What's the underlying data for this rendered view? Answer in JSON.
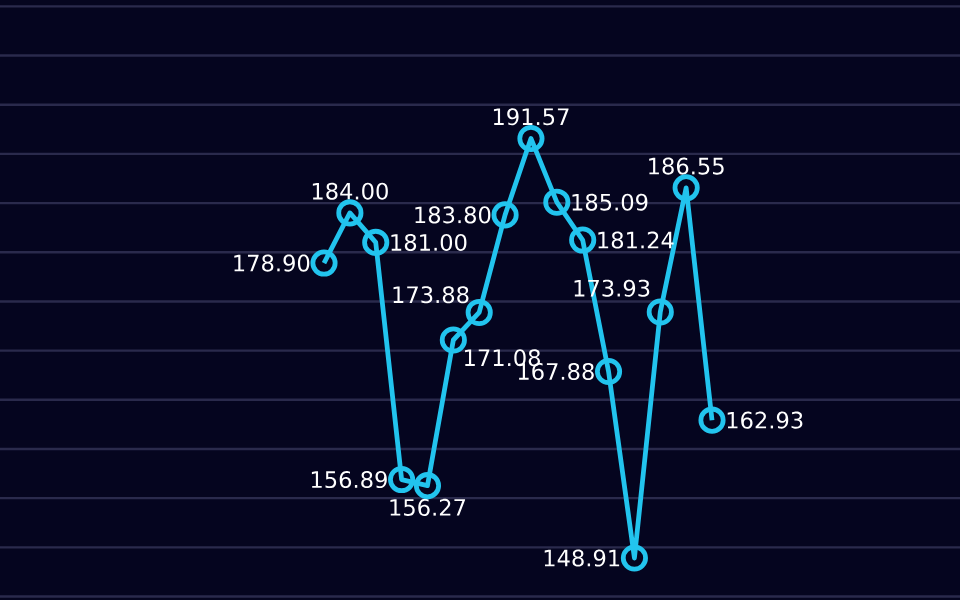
{
  "chart_data": {
    "type": "line",
    "categories": [
      null,
      null,
      null,
      null,
      null,
      null,
      null,
      null,
      null,
      null,
      null,
      null,
      null,
      null,
      null,
      null
    ],
    "series": [
      {
        "color": "#22c4ee",
        "values": [
          178.9,
          184.0,
          181.0,
          156.89,
          156.27,
          171.08,
          173.88,
          183.8,
          191.57,
          185.09,
          181.24,
          167.88,
          148.91,
          173.93,
          186.55,
          162.93
        ],
        "value_labels": [
          "178.90",
          "184.00",
          "181.00",
          "156.89",
          "156.27",
          "171.08",
          "173.88",
          "183.80",
          "191.57",
          "185.09",
          "181.24",
          "167.88",
          "148.91",
          "173.93",
          "186.55",
          "162.93"
        ]
      }
    ],
    "grid": "y",
    "marker": "circle",
    "line_style": "solid",
    "tick_labels": false
  }
}
